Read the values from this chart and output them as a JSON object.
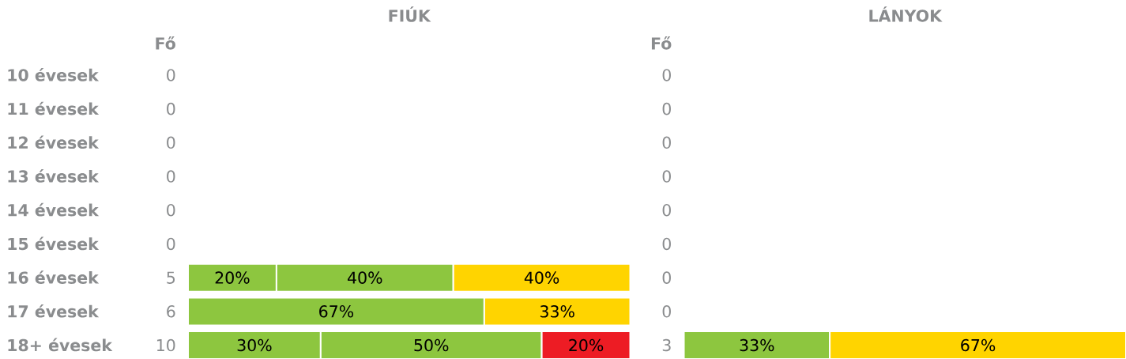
{
  "chart_data": [
    {
      "type": "bar",
      "orientation": "horizontal",
      "stacked": true,
      "title": "FIÚK",
      "categories": [
        "10 évesek",
        "11 évesek",
        "12 évesek",
        "13 évesek",
        "14 évesek",
        "15 évesek",
        "16 évesek",
        "17 évesek",
        "18+ évesek"
      ],
      "xlim": [
        0,
        100
      ],
      "tick_labels": "y",
      "series": [
        {
          "color": "#8dc63f",
          "values": [
            null,
            null,
            null,
            null,
            null,
            null,
            20,
            67,
            30
          ],
          "value_labels": [
            null,
            null,
            null,
            null,
            null,
            null,
            "20%",
            "67%",
            "30%"
          ]
        },
        {
          "color": "#8dc63f",
          "values": [
            null,
            null,
            null,
            null,
            null,
            null,
            40,
            null,
            50
          ],
          "value_labels": [
            null,
            null,
            null,
            null,
            null,
            null,
            "40%",
            null,
            "50%"
          ]
        },
        {
          "color": "#ffd400",
          "values": [
            null,
            null,
            null,
            null,
            null,
            null,
            40,
            33,
            null
          ],
          "value_labels": [
            null,
            null,
            null,
            null,
            null,
            null,
            "40%",
            "33%",
            null
          ]
        },
        {
          "color": "#ed1c24",
          "values": [
            null,
            null,
            null,
            null,
            null,
            null,
            null,
            null,
            20
          ],
          "value_labels": [
            null,
            null,
            null,
            null,
            null,
            null,
            null,
            null,
            "20%"
          ]
        }
      ],
      "annotations": [
        "Fő",
        "0",
        "0",
        "0",
        "0",
        "0",
        "0",
        "5",
        "6",
        "10"
      ]
    },
    {
      "type": "bar",
      "orientation": "horizontal",
      "stacked": true,
      "title": "LÁNYOK",
      "categories": [
        null,
        null,
        null,
        null,
        null,
        null,
        null,
        null,
        null
      ],
      "xlim": [
        0,
        100
      ],
      "tick_labels": false,
      "series": [
        {
          "color": "#8dc63f",
          "values": [
            null,
            null,
            null,
            null,
            null,
            null,
            null,
            null,
            33
          ],
          "value_labels": [
            null,
            null,
            null,
            null,
            null,
            null,
            null,
            null,
            "33%"
          ]
        },
        {
          "color": "#ffd400",
          "values": [
            null,
            null,
            null,
            null,
            null,
            null,
            null,
            null,
            67
          ],
          "value_labels": [
            null,
            null,
            null,
            null,
            null,
            null,
            null,
            null,
            "67%"
          ]
        }
      ],
      "annotations": [
        "Fő",
        "0",
        "0",
        "0",
        "0",
        "0",
        "0",
        "0",
        "0",
        "3"
      ]
    }
  ]
}
